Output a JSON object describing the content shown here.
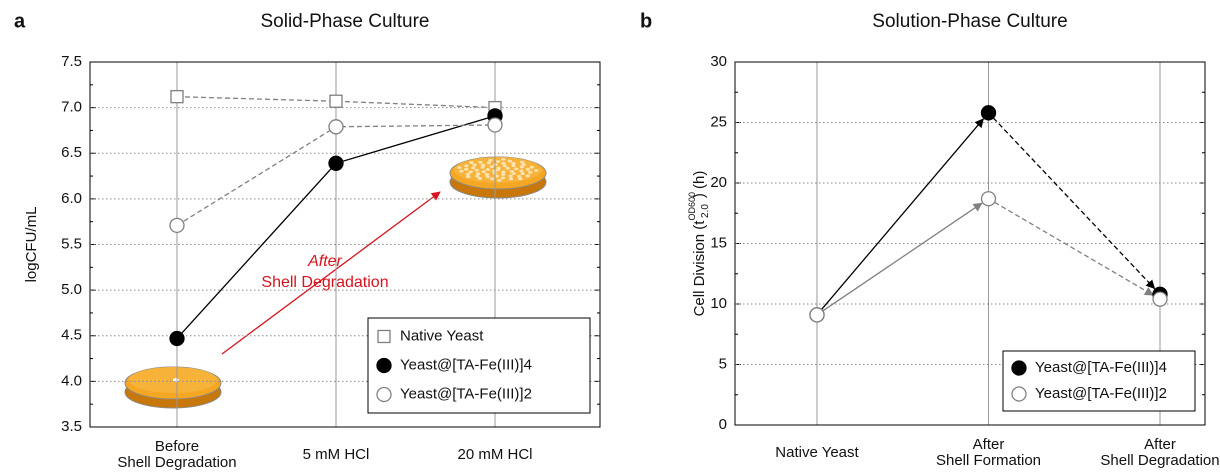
{
  "chart_data": [
    {
      "type": "line",
      "panel_label": "a",
      "title": "Solid-Phase Culture",
      "ylabel": "logCFU/mL",
      "categories": [
        [
          "Before",
          "Shell Degradation"
        ],
        [
          "5 mM HCl"
        ],
        [
          "20 mM HCl"
        ]
      ],
      "ylim": [
        3.5,
        7.5
      ],
      "yticks": [
        3.5,
        {
          "value": 4,
          "label": "4.0"
        },
        4.5,
        {
          "value": 5,
          "label": "5.0"
        },
        5.5,
        {
          "value": 6,
          "label": "6.0"
        },
        6.5,
        {
          "value": 7,
          "label": "7.0"
        },
        7.5
      ],
      "grid": true,
      "legend": "lower right",
      "annotation": [
        "After",
        "Shell Degradation"
      ],
      "series": [
        {
          "name": "Native Yeast",
          "color": "#808080",
          "marker": "square",
          "filled": false,
          "dashed": true,
          "values": [
            7.12,
            7.07,
            7.0
          ]
        },
        {
          "name": "Yeast@[TA-Fe(III)]4",
          "color": "#000000",
          "marker": "circle",
          "filled": true,
          "dashed": false,
          "values": [
            4.47,
            6.39,
            6.91
          ]
        },
        {
          "name": "Yeast@[TA-Fe(III)]2",
          "color": "#808080",
          "marker": "circle",
          "filled": false,
          "dashed": true,
          "values": [
            5.71,
            6.79,
            6.81
          ]
        }
      ]
    },
    {
      "type": "line",
      "panel_label": "b",
      "title": "Solution-Phase Culture",
      "ylabel": {
        "text": "Cell Division (t",
        "sup": "OD600",
        "sub": "2.0",
        "tail": ") (h)"
      },
      "categories": [
        [
          "Native Yeast"
        ],
        [
          "After",
          "Shell Formation"
        ],
        [
          "After",
          "Shell Degradation"
        ]
      ],
      "ylim": [
        0,
        30
      ],
      "yticks": [
        0,
        5,
        10,
        15,
        20,
        25,
        30
      ],
      "grid": true,
      "legend": "lower right",
      "arrows": true,
      "segment_dashed": [
        false,
        true
      ],
      "series": [
        {
          "name": "Yeast@[TA-Fe(III)]4",
          "color": "#000000",
          "marker": "circle",
          "filled": true,
          "values": [
            9.1,
            25.8,
            10.8
          ]
        },
        {
          "name": "Yeast@[TA-Fe(III)]2",
          "color": "#808080",
          "marker": "circle",
          "filled": false,
          "values": [
            9.1,
            18.7,
            10.4
          ]
        }
      ]
    }
  ]
}
